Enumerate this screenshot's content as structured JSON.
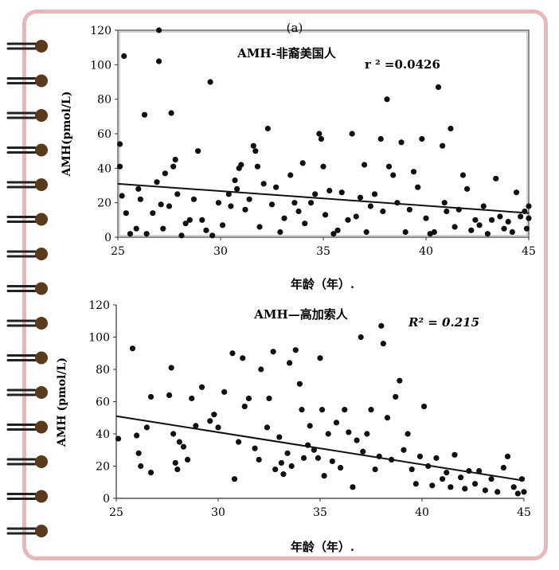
{
  "chart_data": [
    {
      "type": "scatter",
      "panel_label": "(a)",
      "title": "AMH-非裔美国人",
      "stat_label": "r ² =0.0426",
      "xlabel": "年龄（年）.",
      "ylabel": "AMH(pmol/L)",
      "xlim": [
        25,
        45
      ],
      "ylim": [
        0,
        120
      ],
      "xticks": [
        "25",
        "30",
        "35",
        "40",
        "45"
      ],
      "yticks": [
        "0",
        "20",
        "40",
        "60",
        "80",
        "100",
        "120"
      ],
      "trendline": {
        "x": [
          25,
          45
        ],
        "y": [
          31,
          14
        ]
      },
      "points": [
        [
          25.1,
          54
        ],
        [
          25.1,
          41
        ],
        [
          25.2,
          24
        ],
        [
          25.3,
          105
        ],
        [
          25.4,
          14
        ],
        [
          25.6,
          2
        ],
        [
          25.9,
          5
        ],
        [
          26.0,
          28
        ],
        [
          26.1,
          22
        ],
        [
          26.3,
          71
        ],
        [
          26.4,
          2
        ],
        [
          26.7,
          14
        ],
        [
          26.9,
          32
        ],
        [
          27.0,
          120
        ],
        [
          27.0,
          102
        ],
        [
          27.1,
          19
        ],
        [
          27.2,
          5
        ],
        [
          27.3,
          37
        ],
        [
          27.5,
          18
        ],
        [
          27.6,
          72
        ],
        [
          27.7,
          41
        ],
        [
          27.8,
          45
        ],
        [
          27.9,
          25
        ],
        [
          28.1,
          1
        ],
        [
          28.3,
          8
        ],
        [
          28.5,
          10
        ],
        [
          28.7,
          22
        ],
        [
          28.9,
          50
        ],
        [
          29.1,
          10
        ],
        [
          29.3,
          4
        ],
        [
          29.5,
          90
        ],
        [
          29.6,
          1
        ],
        [
          29.9,
          20
        ],
        [
          30.1,
          7
        ],
        [
          30.4,
          25
        ],
        [
          30.5,
          18
        ],
        [
          30.7,
          33
        ],
        [
          30.8,
          28
        ],
        [
          30.9,
          40
        ],
        [
          31.0,
          42
        ],
        [
          31.2,
          16
        ],
        [
          31.4,
          22
        ],
        [
          31.6,
          53
        ],
        [
          31.7,
          50
        ],
        [
          31.8,
          41
        ],
        [
          31.9,
          6
        ],
        [
          32.1,
          31
        ],
        [
          32.3,
          63
        ],
        [
          32.5,
          19
        ],
        [
          32.7,
          29
        ],
        [
          32.9,
          3
        ],
        [
          33.1,
          11
        ],
        [
          33.4,
          36
        ],
        [
          33.6,
          20
        ],
        [
          33.8,
          15
        ],
        [
          34.0,
          43
        ],
        [
          34.1,
          8
        ],
        [
          34.4,
          20
        ],
        [
          34.6,
          25
        ],
        [
          34.8,
          60
        ],
        [
          34.9,
          57
        ],
        [
          35.0,
          41
        ],
        [
          35.1,
          13
        ],
        [
          35.3,
          27
        ],
        [
          35.5,
          2
        ],
        [
          35.7,
          4
        ],
        [
          35.9,
          26
        ],
        [
          36.2,
          10
        ],
        [
          36.4,
          60
        ],
        [
          36.6,
          12
        ],
        [
          36.8,
          23
        ],
        [
          37.0,
          42
        ],
        [
          37.1,
          3
        ],
        [
          37.3,
          18
        ],
        [
          37.5,
          25
        ],
        [
          37.8,
          57
        ],
        [
          37.9,
          15
        ],
        [
          38.1,
          80
        ],
        [
          38.2,
          41
        ],
        [
          38.4,
          36
        ],
        [
          38.6,
          20
        ],
        [
          38.8,
          55
        ],
        [
          39.0,
          3
        ],
        [
          39.2,
          16
        ],
        [
          39.4,
          38
        ],
        [
          39.6,
          29
        ],
        [
          39.8,
          57
        ],
        [
          40.0,
          11
        ],
        [
          40.2,
          2
        ],
        [
          40.4,
          3
        ],
        [
          40.6,
          87
        ],
        [
          40.8,
          53
        ],
        [
          40.9,
          20
        ],
        [
          41.0,
          15
        ],
        [
          41.2,
          63
        ],
        [
          41.4,
          6
        ],
        [
          41.6,
          16
        ],
        [
          41.8,
          36
        ],
        [
          42.0,
          28
        ],
        [
          42.2,
          4
        ],
        [
          42.4,
          10
        ],
        [
          42.6,
          7
        ],
        [
          42.8,
          18
        ],
        [
          43.0,
          2
        ],
        [
          43.2,
          10
        ],
        [
          43.4,
          34
        ],
        [
          43.6,
          12
        ],
        [
          43.8,
          5
        ],
        [
          44.0,
          9
        ],
        [
          44.2,
          3
        ],
        [
          44.4,
          26
        ],
        [
          44.6,
          12
        ],
        [
          44.8,
          15
        ],
        [
          44.9,
          5
        ],
        [
          45.0,
          18
        ],
        [
          45.0,
          11
        ]
      ]
    },
    {
      "type": "scatter",
      "title": "AMH—高加索人",
      "stat_label": "R² = 0.215",
      "xlabel": "年龄（年）.",
      "ylabel": "AMH (pmol/L)",
      "xlim": [
        25,
        45
      ],
      "ylim": [
        0,
        120
      ],
      "xticks": [
        "25",
        "30",
        "35",
        "40",
        "45"
      ],
      "yticks": [
        "0",
        "20",
        "40",
        "60",
        "80",
        "100",
        "120"
      ],
      "trendline": {
        "x": [
          25,
          45
        ],
        "y": [
          51,
          11
        ]
      },
      "points": [
        [
          25.1,
          37
        ],
        [
          25.8,
          93
        ],
        [
          26.0,
          39
        ],
        [
          26.1,
          28
        ],
        [
          26.2,
          20
        ],
        [
          26.5,
          44
        ],
        [
          26.7,
          63
        ],
        [
          26.7,
          16
        ],
        [
          27.6,
          64
        ],
        [
          27.7,
          81
        ],
        [
          27.8,
          40
        ],
        [
          27.9,
          22
        ],
        [
          28.0,
          18
        ],
        [
          28.1,
          35
        ],
        [
          28.3,
          32
        ],
        [
          28.5,
          24
        ],
        [
          28.7,
          62
        ],
        [
          28.9,
          45
        ],
        [
          29.2,
          69
        ],
        [
          29.6,
          48
        ],
        [
          29.8,
          52
        ],
        [
          30.0,
          44
        ],
        [
          30.3,
          66
        ],
        [
          30.7,
          90
        ],
        [
          30.8,
          12
        ],
        [
          31.0,
          35
        ],
        [
          31.2,
          87
        ],
        [
          31.3,
          57
        ],
        [
          31.5,
          62
        ],
        [
          31.8,
          31
        ],
        [
          32.0,
          24
        ],
        [
          32.1,
          80
        ],
        [
          32.4,
          44
        ],
        [
          32.5,
          62
        ],
        [
          32.7,
          91
        ],
        [
          32.8,
          18
        ],
        [
          33.0,
          38
        ],
        [
          33.1,
          22
        ],
        [
          33.2,
          15
        ],
        [
          33.4,
          28
        ],
        [
          33.5,
          84
        ],
        [
          33.6,
          20
        ],
        [
          33.8,
          92
        ],
        [
          34.0,
          71
        ],
        [
          34.1,
          55
        ],
        [
          34.2,
          25
        ],
        [
          34.4,
          33
        ],
        [
          34.5,
          45
        ],
        [
          34.7,
          30
        ],
        [
          34.9,
          25
        ],
        [
          35.0,
          87
        ],
        [
          35.1,
          55
        ],
        [
          35.2,
          14
        ],
        [
          35.4,
          40
        ],
        [
          35.6,
          23
        ],
        [
          35.8,
          47
        ],
        [
          36.0,
          19
        ],
        [
          36.2,
          55
        ],
        [
          36.4,
          41
        ],
        [
          36.6,
          7
        ],
        [
          36.8,
          36
        ],
        [
          37.0,
          100
        ],
        [
          37.1,
          29
        ],
        [
          37.3,
          40
        ],
        [
          37.5,
          55
        ],
        [
          37.7,
          18
        ],
        [
          37.9,
          26
        ],
        [
          38.0,
          107
        ],
        [
          38.1,
          96
        ],
        [
          38.3,
          50
        ],
        [
          38.5,
          24
        ],
        [
          38.7,
          63
        ],
        [
          38.9,
          73
        ],
        [
          39.1,
          30
        ],
        [
          39.3,
          40
        ],
        [
          39.5,
          18
        ],
        [
          39.7,
          9
        ],
        [
          39.9,
          26
        ],
        [
          40.1,
          57
        ],
        [
          40.3,
          20
        ],
        [
          40.5,
          8
        ],
        [
          40.7,
          25
        ],
        [
          41.0,
          12
        ],
        [
          41.2,
          16
        ],
        [
          41.4,
          7
        ],
        [
          41.6,
          27
        ],
        [
          41.9,
          13
        ],
        [
          42.1,
          6
        ],
        [
          42.3,
          17
        ],
        [
          42.6,
          9
        ],
        [
          42.8,
          17
        ],
        [
          43.1,
          5
        ],
        [
          43.4,
          12
        ],
        [
          43.7,
          4
        ],
        [
          44.0,
          19
        ],
        [
          44.2,
          26
        ],
        [
          44.5,
          7
        ],
        [
          44.7,
          3
        ],
        [
          44.9,
          12
        ],
        [
          45.0,
          4
        ]
      ]
    }
  ]
}
